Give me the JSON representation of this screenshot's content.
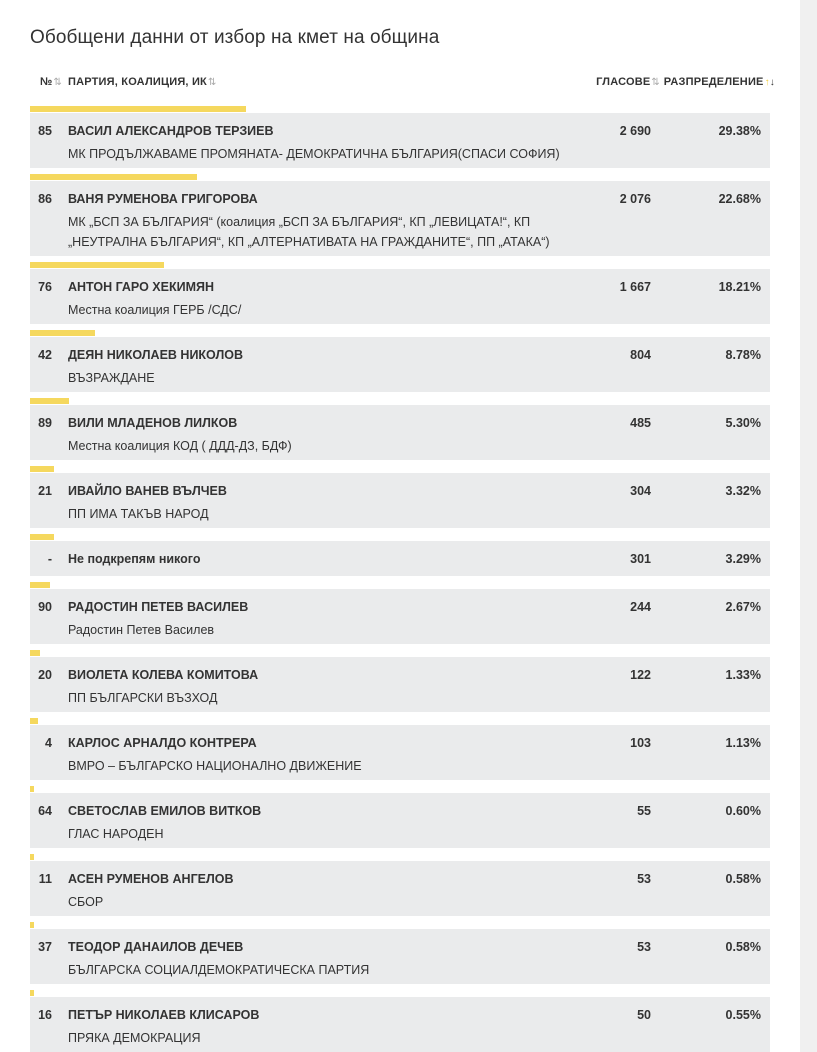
{
  "title": "Обобщени данни от избор на кмет на община",
  "headers": {
    "num": "№",
    "party": "ПАРТИЯ, КОАЛИЦИЯ, ИК",
    "votes": "ГЛАСОВЕ",
    "share": "РАЗПРЕДЕЛЕНИЕ"
  },
  "colors": {
    "bar": "#f5d85e",
    "row_bg": "#eaebec"
  },
  "rows": [
    {
      "num": "85",
      "name": "ВАСИЛ АЛЕКСАНДРОВ ТЕРЗИЕВ",
      "party": "МК ПРОДЪЛЖАВАМЕ ПРОМЯНАТА- ДЕМОКРАТИЧНА БЪЛГАРИЯ(СПАСИ СОФИЯ)",
      "votes": "2 690",
      "share": "29.38%",
      "share_value": 29.38
    },
    {
      "num": "86",
      "name": "ВАНЯ РУМЕНОВА ГРИГОРОВА",
      "party": "МК „БСП ЗА БЪЛГАРИЯ“ (коалиция „БСП ЗА БЪЛГАРИЯ“, КП „ЛЕВИЦАТА!“, КП „НЕУТРАЛНА БЪЛГАРИЯ“, КП „АЛТЕРНАТИВАТА НА ГРАЖДАНИТЕ“, ПП „АТАКА“)",
      "votes": "2 076",
      "share": "22.68%",
      "share_value": 22.68
    },
    {
      "num": "76",
      "name": "АНТОН ГАРО ХЕКИМЯН",
      "party": "Местна коалиция ГЕРБ /СДС/",
      "votes": "1 667",
      "share": "18.21%",
      "share_value": 18.21
    },
    {
      "num": "42",
      "name": "ДЕЯН НИКОЛАЕВ НИКОЛОВ",
      "party": "ВЪЗРАЖДАНЕ",
      "votes": "804",
      "share": "8.78%",
      "share_value": 8.78
    },
    {
      "num": "89",
      "name": "ВИЛИ МЛАДЕНОВ ЛИЛКОВ",
      "party": "Местна коалиция КОД ( ДДД-ДЗ, БДФ)",
      "votes": "485",
      "share": "5.30%",
      "share_value": 5.3
    },
    {
      "num": "21",
      "name": "ИВАЙЛО ВАНЕВ ВЪЛЧЕВ",
      "party": "ПП ИМА ТАКЪВ НАРОД",
      "votes": "304",
      "share": "3.32%",
      "share_value": 3.32
    },
    {
      "num": "-",
      "name": "Не подкрепям никого",
      "party": "",
      "votes": "301",
      "share": "3.29%",
      "share_value": 3.29
    },
    {
      "num": "90",
      "name": "РАДОСТИН ПЕТЕВ ВАСИЛЕВ",
      "party": "Радостин Петев Василев",
      "votes": "244",
      "share": "2.67%",
      "share_value": 2.67
    },
    {
      "num": "20",
      "name": "ВИОЛЕТА КОЛЕВА КОМИТОВА",
      "party": "ПП БЪЛГАРСКИ ВЪЗХОД",
      "votes": "122",
      "share": "1.33%",
      "share_value": 1.33
    },
    {
      "num": "4",
      "name": "КАРЛОС АРНАЛДО КОНТРЕРА",
      "party": "ВМРО – БЪЛГАРСКО НАЦИОНАЛНО ДВИЖЕНИЕ",
      "votes": "103",
      "share": "1.13%",
      "share_value": 1.13
    },
    {
      "num": "64",
      "name": "СВЕТОСЛАВ ЕМИЛОВ ВИТКОВ",
      "party": "ГЛАС НАРОДЕН",
      "votes": "55",
      "share": "0.60%",
      "share_value": 0.6
    },
    {
      "num": "11",
      "name": "АСЕН РУМЕНОВ АНГЕЛОВ",
      "party": "СБОР",
      "votes": "53",
      "share": "0.58%",
      "share_value": 0.58
    },
    {
      "num": "37",
      "name": "ТЕОДОР ДАНАИЛОВ ДЕЧЕВ",
      "party": "БЪЛГАРСКА СОЦИАЛДЕМОКРАТИЧЕСКА ПАРТИЯ",
      "votes": "53",
      "share": "0.58%",
      "share_value": 0.58
    },
    {
      "num": "16",
      "name": "ПЕТЪР НИКОЛАЕВ КЛИСАРОВ",
      "party": "ПРЯКА ДЕМОКРАЦИЯ",
      "votes": "50",
      "share": "0.55%",
      "share_value": 0.55
    }
  ]
}
